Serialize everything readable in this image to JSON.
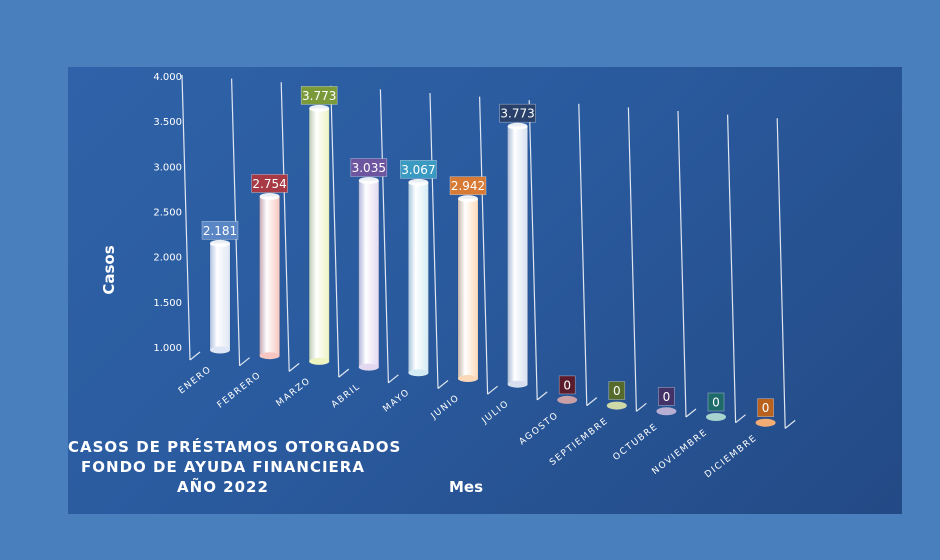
{
  "chart_data": {
    "type": "bar",
    "title": [
      "CASOS DE PRÉSTAMOS OTORGADOS",
      "FONDO DE AYUDA FINANCIERA",
      "AÑO 2022"
    ],
    "xlabel": "Mes",
    "ylabel": "Casos",
    "ylim": [
      1000,
      4000
    ],
    "yticks": [
      "1.000",
      "1.500",
      "2.000",
      "2.500",
      "3.000",
      "3.500",
      "4.000"
    ],
    "categories": [
      "ENERO",
      "FEBRERO",
      "MARZO",
      "ABRIL",
      "MAYO",
      "JUNIO",
      "JULIO",
      "AGOSTO",
      "SEPTIEMBRE",
      "OCTUBRE",
      "NOVIEMBRE",
      "DICIEMBRE"
    ],
    "values": [
      2181,
      2754,
      3773,
      3035,
      3067,
      2942,
      3773,
      0,
      0,
      0,
      0,
      0
    ],
    "data_labels": [
      "2.181",
      "2.754",
      "3.773",
      "3.035",
      "3.067",
      "2.942",
      "3.773",
      "0",
      "0",
      "0",
      "0",
      "0"
    ],
    "colors": [
      "#dfe6f5",
      "#f7c6c0",
      "#eef3c2",
      "#e2d9f0",
      "#d4ecf4",
      "#fbd9b8",
      "#d8e0f0",
      "#c9a0a6",
      "#cfd9a8",
      "#b9aed4",
      "#a8d4d0",
      "#f3ad74"
    ],
    "label_colors": [
      "#5a86c6",
      "#a83a45",
      "#7a9a3a",
      "#6e55a0",
      "#3a9ac2",
      "#d67a35",
      "#28406a",
      "#5a1c2c",
      "#566a2c",
      "#433268",
      "#1e6a6a",
      "#b8621e"
    ],
    "grid": true
  }
}
